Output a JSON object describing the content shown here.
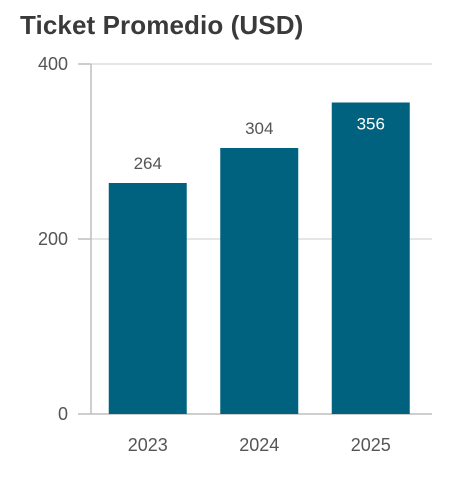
{
  "title": "Ticket Promedio (USD)",
  "colors": {
    "bar": "#00627e",
    "grid": "#dddddd",
    "axis": "#bdbdbd",
    "tick_text": "#555555",
    "label_outside": "#555555",
    "label_inside": "#ffffff"
  },
  "chart_data": {
    "type": "bar",
    "title": "Ticket Promedio (USD)",
    "categories": [
      "2023",
      "2024",
      "2025"
    ],
    "values": [
      264,
      304,
      356
    ],
    "data_labels": [
      "264",
      "304",
      "356"
    ],
    "xlabel": "",
    "ylabel": "",
    "ylim": [
      0,
      400
    ],
    "yticks": [
      0,
      200,
      400
    ],
    "ytick_labels": [
      "0",
      "200",
      "400"
    ],
    "grid": true,
    "legend": "none"
  }
}
